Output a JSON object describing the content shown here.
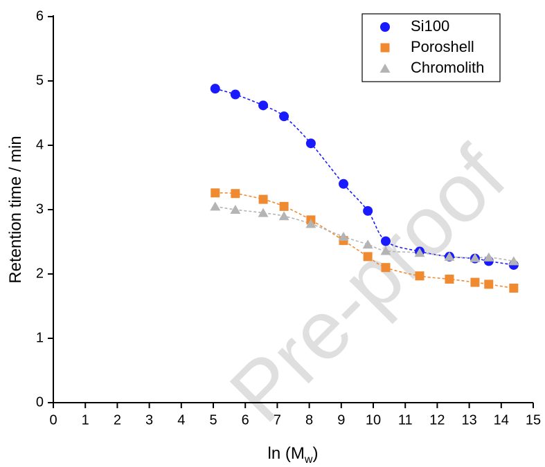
{
  "chart_data": {
    "type": "scatter",
    "x_label": [
      "ln (M",
      "w",
      ")"
    ],
    "y_label": "Retention time / min",
    "watermark": "Pre-proof",
    "xlim": [
      0,
      15
    ],
    "xticks": [
      0,
      1,
      2,
      3,
      4,
      5,
      6,
      7,
      8,
      9,
      10,
      11,
      12,
      13,
      14,
      15
    ],
    "ylim": [
      0,
      6
    ],
    "yticks": [
      0,
      1,
      2,
      3,
      4,
      5,
      6
    ],
    "legend": "top-right",
    "series": [
      {
        "name": "Si100",
        "color": "#1a1aff",
        "marker": "circle",
        "x": [
          5.06,
          5.69,
          6.56,
          7.21,
          8.05,
          9.07,
          9.83,
          10.39,
          11.45,
          12.38,
          13.18,
          13.61,
          14.39
        ],
        "values": [
          4.88,
          4.79,
          4.62,
          4.45,
          4.03,
          3.4,
          2.98,
          2.51,
          2.35,
          2.27,
          2.24,
          2.2,
          2.14
        ]
      },
      {
        "name": "Poroshell",
        "color": "#f08a30",
        "marker": "square",
        "x": [
          5.06,
          5.69,
          6.56,
          7.21,
          8.05,
          9.07,
          9.83,
          10.39,
          11.45,
          12.38,
          13.18,
          13.61,
          14.39
        ],
        "values": [
          3.26,
          3.25,
          3.16,
          3.05,
          2.84,
          2.52,
          2.27,
          2.1,
          1.97,
          1.92,
          1.87,
          1.84,
          1.78
        ]
      },
      {
        "name": "Chromolith",
        "color": "#b4b4b4",
        "marker": "triangle",
        "x": [
          5.06,
          5.69,
          6.56,
          7.21,
          8.05,
          9.07,
          9.83,
          10.39,
          11.45,
          12.38,
          13.18,
          13.61,
          14.39
        ],
        "values": [
          3.05,
          3.0,
          2.95,
          2.9,
          2.78,
          2.58,
          2.46,
          2.36,
          2.33,
          2.27,
          2.25,
          2.26,
          2.2
        ]
      }
    ]
  }
}
